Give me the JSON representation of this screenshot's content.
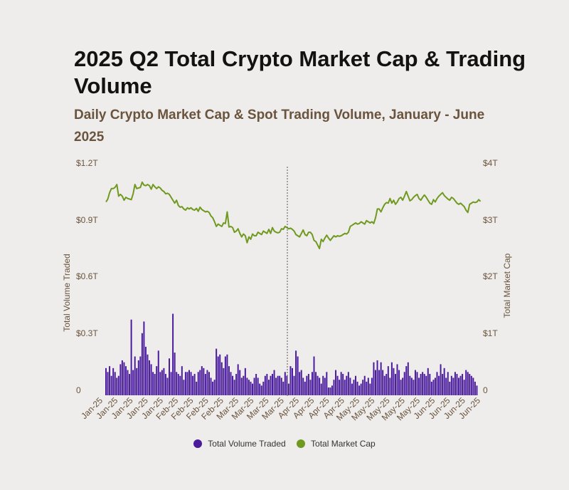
{
  "title": "2025 Q2 Total Crypto Market Cap & Trading Volume",
  "subtitle": "Daily Crypto Market Cap & Spot Trading Volume, January - June 2025",
  "colors": {
    "volume": "#4a1a9c",
    "market_cap": "#6f9a1f",
    "text_brown": "#6a543d",
    "divider": "#555555"
  },
  "chart_data": {
    "type": "bar",
    "title": "2025 Q2 Total Crypto Market Cap & Trading Volume",
    "subtitle": "Daily Crypto Market Cap & Spot Trading Volume, January - June 2025",
    "x_tick_labels": [
      "Jan-25",
      "Jan-25",
      "Jan-25",
      "Jan-25",
      "Jan-25",
      "Feb-25",
      "Feb-25",
      "Feb-25",
      "Feb-25",
      "Mar-25",
      "Mar-25",
      "Mar-25",
      "Mar-25",
      "Apr-25",
      "Apr-25",
      "Apr-25",
      "Apr-25",
      "May-25",
      "May-25",
      "May-25",
      "May-25",
      "May-25",
      "Jun-25",
      "Jun-25",
      "Jun-25",
      "Jun-25"
    ],
    "y_left": {
      "label": "Total Volume Traded",
      "ticks": [
        "0",
        "$0.3T",
        "$0.6T",
        "$0.9T",
        "$1.2T"
      ],
      "range": [
        0,
        1.2
      ],
      "unit": "trillion USD"
    },
    "y_right": {
      "label": "Total Market Cap",
      "ticks": [
        "0",
        "$1T",
        "$2T",
        "$3T",
        "$4T"
      ],
      "range": [
        0,
        4
      ],
      "unit": "trillion USD"
    },
    "divider_between": [
      "Mar-25",
      "Apr-25"
    ],
    "legend_position": "bottom",
    "series": [
      {
        "name": "Total Volume Traded",
        "type": "bar",
        "axis": "left",
        "values": [
          0.14,
          0.12,
          0.15,
          0.1,
          0.14,
          0.12,
          0.09,
          0.1,
          0.16,
          0.18,
          0.17,
          0.15,
          0.13,
          0.11,
          0.39,
          0.13,
          0.2,
          0.14,
          0.18,
          0.2,
          0.32,
          0.38,
          0.25,
          0.21,
          0.18,
          0.16,
          0.12,
          0.11,
          0.15,
          0.23,
          0.12,
          0.13,
          0.14,
          0.11,
          0.09,
          0.19,
          0.12,
          0.42,
          0.22,
          0.12,
          0.11,
          0.1,
          0.15,
          0.08,
          0.12,
          0.12,
          0.13,
          0.12,
          0.1,
          0.11,
          0.07,
          0.12,
          0.13,
          0.15,
          0.14,
          0.11,
          0.13,
          0.12,
          0.09,
          0.07,
          0.08,
          0.24,
          0.2,
          0.21,
          0.17,
          0.14,
          0.2,
          0.21,
          0.15,
          0.12,
          0.1,
          0.08,
          0.11,
          0.16,
          0.13,
          0.09,
          0.1,
          0.14,
          0.09,
          0.08,
          0.07,
          0.06,
          0.09,
          0.11,
          0.09,
          0.06,
          0.05,
          0.07,
          0.1,
          0.11,
          0.08,
          0.1,
          0.11,
          0.13,
          0.09,
          0.1,
          0.1,
          0.09,
          0.07,
          0.12,
          0.1,
          0.06,
          0.15,
          0.14,
          0.1,
          0.23,
          0.2,
          0.12,
          0.13,
          0.09,
          0.07,
          0.1,
          0.11,
          0.08,
          0.12,
          0.2,
          0.12,
          0.1,
          0.09,
          0.06,
          0.1,
          0.09,
          0.12,
          0.04,
          0.04,
          0.05,
          0.08,
          0.13,
          0.1,
          0.08,
          0.12,
          0.11,
          0.08,
          0.1,
          0.12,
          0.09,
          0.06,
          0.08,
          0.1,
          0.07,
          0.05,
          0.06,
          0.08,
          0.1,
          0.07,
          0.09,
          0.06,
          0.09,
          0.17,
          0.13,
          0.18,
          0.13,
          0.17,
          0.13,
          0.1,
          0.11,
          0.15,
          0.09,
          0.17,
          0.14,
          0.11,
          0.16,
          0.13,
          0.08,
          0.09,
          0.12,
          0.15,
          0.17,
          0.1,
          0.09,
          0.08,
          0.13,
          0.12,
          0.09,
          0.11,
          0.12,
          0.11,
          0.1,
          0.14,
          0.11,
          0.07,
          0.08,
          0.09,
          0.12,
          0.1,
          0.16,
          0.11,
          0.14,
          0.09,
          0.12,
          0.07,
          0.1,
          0.09,
          0.12,
          0.11,
          0.09,
          0.1,
          0.11,
          0.08,
          0.13,
          0.12,
          0.11,
          0.1,
          0.09,
          0.07,
          0.05
        ]
      },
      {
        "name": "Total Market Cap",
        "type": "line",
        "axis": "right",
        "values": [
          3.32,
          3.37,
          3.48,
          3.55,
          3.55,
          3.57,
          3.62,
          3.42,
          3.45,
          3.42,
          3.35,
          3.4,
          3.38,
          3.37,
          3.36,
          3.46,
          3.62,
          3.55,
          3.56,
          3.57,
          3.66,
          3.61,
          3.6,
          3.62,
          3.6,
          3.54,
          3.62,
          3.58,
          3.55,
          3.58,
          3.56,
          3.52,
          3.5,
          3.46,
          3.47,
          3.45,
          3.4,
          3.35,
          3.3,
          3.35,
          3.26,
          3.23,
          3.24,
          3.2,
          3.18,
          3.22,
          3.2,
          3.22,
          3.19,
          3.18,
          3.21,
          3.16,
          3.23,
          3.19,
          3.17,
          3.15,
          3.16,
          3.14,
          3.08,
          3.05,
          2.98,
          2.9,
          2.94,
          2.92,
          2.9,
          2.96,
          2.95,
          3.15,
          2.89,
          2.9,
          2.88,
          2.8,
          2.82,
          2.86,
          2.78,
          2.72,
          2.77,
          2.74,
          2.62,
          2.72,
          2.68,
          2.77,
          2.74,
          2.74,
          2.8,
          2.78,
          2.76,
          2.82,
          2.8,
          2.78,
          2.85,
          2.78,
          2.88,
          2.82,
          2.8,
          2.79,
          2.8,
          2.86,
          2.85,
          2.9,
          2.88,
          2.86,
          2.87,
          2.85,
          2.82,
          2.76,
          2.74,
          2.72,
          2.78,
          2.84,
          2.76,
          2.74,
          2.8,
          2.8,
          2.76,
          2.66,
          2.64,
          2.58,
          2.52,
          2.68,
          2.64,
          2.7,
          2.75,
          2.7,
          2.66,
          2.7,
          2.74,
          2.72,
          2.74,
          2.73,
          2.74,
          2.76,
          2.78,
          2.77,
          2.8,
          2.9,
          2.92,
          2.94,
          2.96,
          2.94,
          2.95,
          2.98,
          2.96,
          2.94,
          3.0,
          2.98,
          2.96,
          2.98,
          2.95,
          3.05,
          3.2,
          3.2,
          3.15,
          3.22,
          3.28,
          3.31,
          3.3,
          3.38,
          3.3,
          3.35,
          3.28,
          3.32,
          3.38,
          3.4,
          3.35,
          3.42,
          3.5,
          3.42,
          3.34,
          3.36,
          3.4,
          3.43,
          3.45,
          3.38,
          3.35,
          3.4,
          3.44,
          3.4,
          3.35,
          3.3,
          3.28,
          3.36,
          3.32,
          3.38,
          3.42,
          3.45,
          3.48,
          3.43,
          3.4,
          3.37,
          3.35,
          3.4,
          3.38,
          3.34,
          3.3,
          3.28,
          3.3,
          3.27,
          3.24,
          3.18,
          3.14,
          3.28,
          3.3,
          3.32,
          3.31,
          3.32,
          3.36,
          3.33
        ]
      }
    ]
  }
}
